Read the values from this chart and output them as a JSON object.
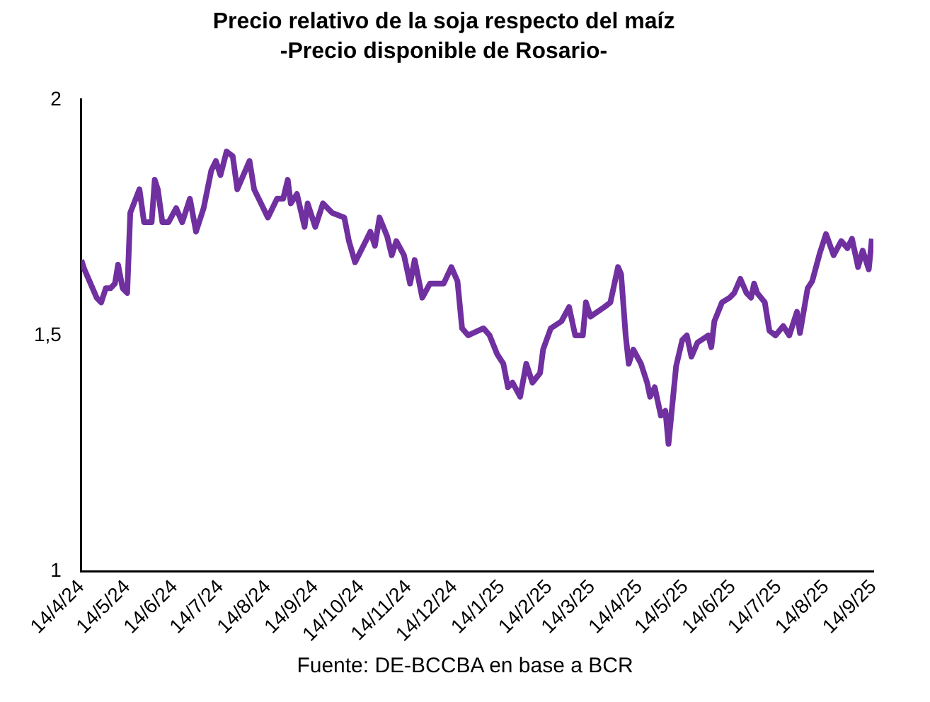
{
  "chart_data": {
    "type": "line",
    "title": "Precio relativo de la soja respecto del maíz",
    "subtitle": "-Precio disponible de Rosario-",
    "annotations": [
      "Fuente: DE-BCCBA en base a BCR"
    ],
    "x": [
      "2024-04-14",
      "2024-04-16",
      "2024-04-20",
      "2024-04-24",
      "2024-04-27",
      "2024-04-30",
      "2024-05-03",
      "2024-05-06",
      "2024-05-08",
      "2024-05-11",
      "2024-05-14",
      "2024-05-16",
      "2024-05-22",
      "2024-05-25",
      "2024-05-30",
      "2024-06-01",
      "2024-06-03",
      "2024-06-06",
      "2024-06-10",
      "2024-06-15",
      "2024-06-19",
      "2024-06-24",
      "2024-06-28",
      "2024-07-03",
      "2024-07-08",
      "2024-07-11",
      "2024-07-14",
      "2024-07-18",
      "2024-07-22",
      "2024-07-25",
      "2024-07-29",
      "2024-08-02",
      "2024-08-05",
      "2024-08-11",
      "2024-08-14",
      "2024-08-20",
      "2024-08-24",
      "2024-08-27",
      "2024-08-29",
      "2024-09-02",
      "2024-09-07",
      "2024-09-09",
      "2024-09-14",
      "2024-09-19",
      "2024-09-25",
      "2024-10-03",
      "2024-10-06",
      "2024-10-10",
      "2024-10-17",
      "2024-10-20",
      "2024-10-23",
      "2024-10-26",
      "2024-10-31",
      "2024-11-03",
      "2024-11-06",
      "2024-11-11",
      "2024-11-15",
      "2024-11-18",
      "2024-11-23",
      "2024-11-28",
      "2024-12-07",
      "2024-12-12",
      "2024-12-16",
      "2024-12-19",
      "2024-12-23",
      "2025-01-02",
      "2025-01-06",
      "2025-01-11",
      "2025-01-15",
      "2025-01-18",
      "2025-01-21",
      "2025-01-26",
      "2025-01-30",
      "2025-02-03",
      "2025-02-08",
      "2025-02-10",
      "2025-02-15",
      "2025-02-22",
      "2025-02-27",
      "2025-03-03",
      "2025-03-08",
      "2025-03-10",
      "2025-03-13",
      "2025-03-22",
      "2025-03-26",
      "2025-03-31",
      "2025-04-02",
      "2025-04-05",
      "2025-04-07",
      "2025-04-10",
      "2025-04-15",
      "2025-04-19",
      "2025-04-21",
      "2025-04-24",
      "2025-04-28",
      "2025-05-01",
      "2025-05-03",
      "2025-05-08",
      "2025-05-12",
      "2025-05-15",
      "2025-05-18",
      "2025-05-22",
      "2025-05-29",
      "2025-05-31",
      "2025-06-02",
      "2025-06-07",
      "2025-06-12",
      "2025-06-15",
      "2025-06-19",
      "2025-06-23",
      "2025-06-26",
      "2025-06-28",
      "2025-06-30",
      "2025-07-05",
      "2025-07-08",
      "2025-07-12",
      "2025-07-17",
      "2025-07-21",
      "2025-07-26",
      "2025-07-28",
      "2025-08-02",
      "2025-08-05",
      "2025-08-10",
      "2025-08-14",
      "2025-08-19",
      "2025-08-24",
      "2025-08-28",
      "2025-08-31",
      "2025-09-04",
      "2025-09-07",
      "2025-09-11",
      "2025-09-13"
    ],
    "series": [
      {
        "color": "#7030a0",
        "values": [
          1.66,
          1.64,
          1.61,
          1.58,
          1.57,
          1.6,
          1.6,
          1.61,
          1.65,
          1.6,
          1.59,
          1.76,
          1.81,
          1.74,
          1.74,
          1.83,
          1.81,
          1.74,
          1.74,
          1.77,
          1.74,
          1.79,
          1.72,
          1.77,
          1.85,
          1.87,
          1.84,
          1.89,
          1.88,
          1.81,
          1.84,
          1.87,
          1.81,
          1.77,
          1.75,
          1.79,
          1.79,
          1.83,
          1.78,
          1.8,
          1.73,
          1.78,
          1.73,
          1.78,
          1.76,
          1.75,
          1.7,
          1.655,
          1.7,
          1.72,
          1.69,
          1.75,
          1.71,
          1.67,
          1.7,
          1.67,
          1.61,
          1.66,
          1.58,
          1.61,
          1.61,
          1.645,
          1.615,
          1.515,
          1.5,
          1.515,
          1.5,
          1.46,
          1.44,
          1.39,
          1.4,
          1.37,
          1.44,
          1.4,
          1.42,
          1.47,
          1.515,
          1.53,
          1.56,
          1.5,
          1.5,
          1.57,
          1.54,
          1.56,
          1.57,
          1.645,
          1.63,
          1.5,
          1.44,
          1.47,
          1.44,
          1.4,
          1.37,
          1.39,
          1.33,
          1.34,
          1.27,
          1.435,
          1.49,
          1.5,
          1.455,
          1.485,
          1.5,
          1.475,
          1.53,
          1.57,
          1.58,
          1.59,
          1.62,
          1.59,
          1.58,
          1.61,
          1.59,
          1.57,
          1.51,
          1.5,
          1.52,
          1.5,
          1.55,
          1.505,
          1.6,
          1.615,
          1.675,
          1.715,
          1.67,
          1.7,
          1.685,
          1.705,
          1.645,
          1.68,
          1.64,
          1.705
        ]
      }
    ],
    "xlim": [
      "2024-04-14",
      "2025-09-14"
    ],
    "xticks": [
      {
        "value": "2024-04-14",
        "label": "14/4/24"
      },
      {
        "value": "2024-05-14",
        "label": "14/5/24"
      },
      {
        "value": "2024-06-14",
        "label": "14/6/24"
      },
      {
        "value": "2024-07-14",
        "label": "14/7/24"
      },
      {
        "value": "2024-08-14",
        "label": "14/8/24"
      },
      {
        "value": "2024-09-14",
        "label": "14/9/24"
      },
      {
        "value": "2024-10-14",
        "label": "14/10/24"
      },
      {
        "value": "2024-11-14",
        "label": "14/11/24"
      },
      {
        "value": "2024-12-14",
        "label": "14/12/24"
      },
      {
        "value": "2025-01-14",
        "label": "14/1/25"
      },
      {
        "value": "2025-02-14",
        "label": "14/2/25"
      },
      {
        "value": "2025-03-14",
        "label": "14/3/25"
      },
      {
        "value": "2025-04-14",
        "label": "14/4/25"
      },
      {
        "value": "2025-05-14",
        "label": "14/5/25"
      },
      {
        "value": "2025-06-14",
        "label": "14/6/25"
      },
      {
        "value": "2025-07-14",
        "label": "14/7/25"
      },
      {
        "value": "2025-08-14",
        "label": "14/8/25"
      },
      {
        "value": "2025-09-14",
        "label": "14/9/25"
      }
    ],
    "ylim": [
      1,
      2
    ],
    "yticks": [
      1,
      {
        "value": 1.5,
        "label": "1,5"
      },
      2
    ],
    "grid": false,
    "legend": false,
    "marker": "none",
    "line_style": "solid"
  }
}
